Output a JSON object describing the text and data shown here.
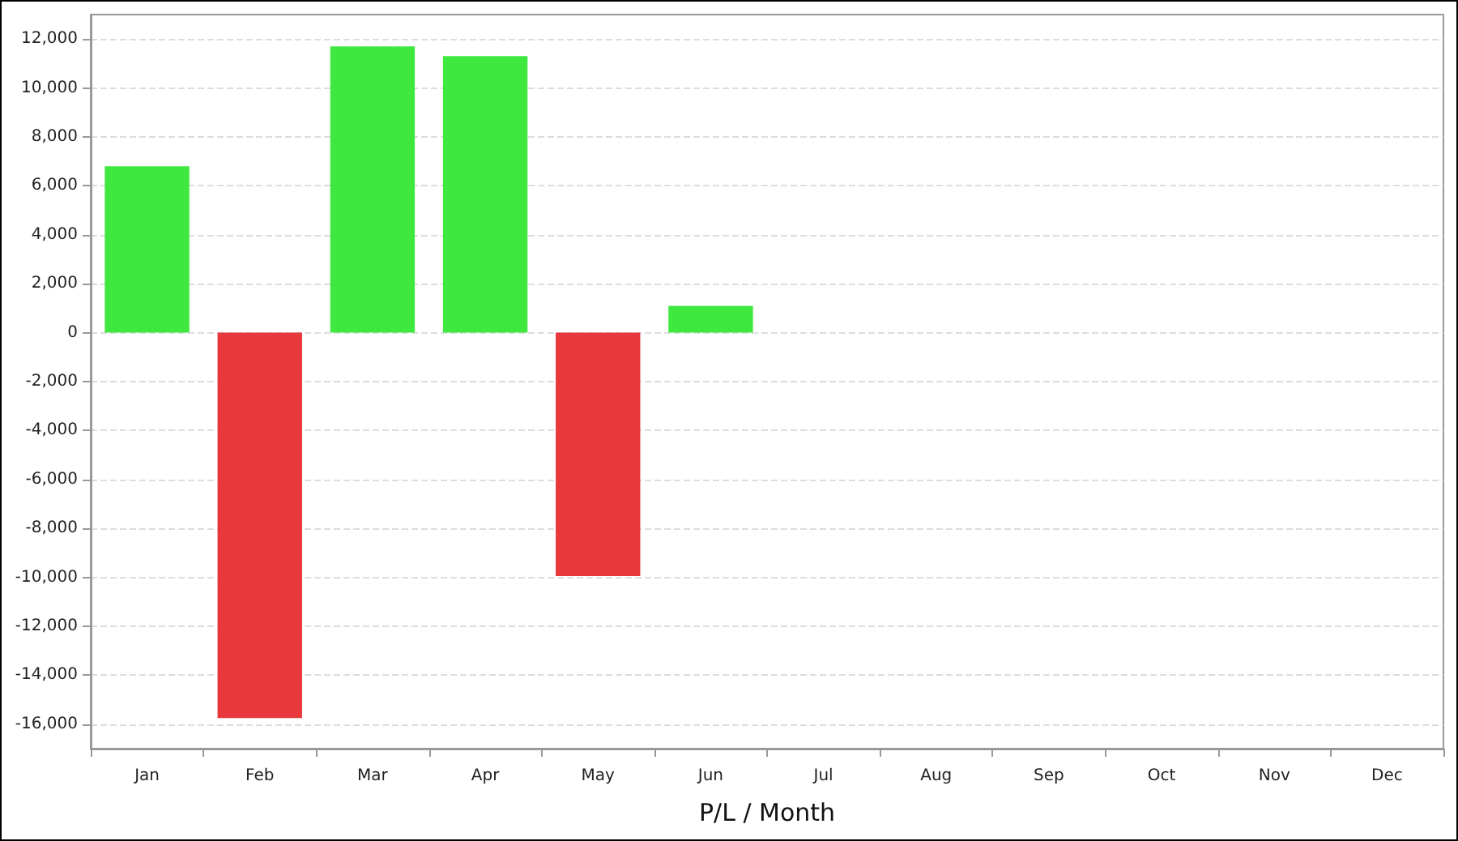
{
  "chart_data": {
    "type": "bar",
    "xlabel": "P/L / Month",
    "categories": [
      "Jan",
      "Feb",
      "Mar",
      "Apr",
      "May",
      "Jun",
      "Jul",
      "Aug",
      "Sep",
      "Oct",
      "Nov",
      "Dec"
    ],
    "values": [
      6800,
      -15750,
      11700,
      11300,
      -9950,
      1100,
      null,
      null,
      null,
      null,
      null,
      null
    ],
    "colors": [
      "#3ee83e",
      "#e8383b",
      "#3ee83e",
      "#3ee83e",
      "#e8383b",
      "#3ee83e",
      null,
      null,
      null,
      null,
      null,
      null
    ],
    "ylim": [
      -17000,
      13000
    ],
    "yticks": [
      {
        "value": -16000,
        "label": "-16,000"
      },
      {
        "value": -14000,
        "label": "-14,000"
      },
      {
        "value": -12000,
        "label": "-12,000"
      },
      {
        "value": -10000,
        "label": "-10,000"
      },
      {
        "value": -8000,
        "label": "-8,000"
      },
      {
        "value": -6000,
        "label": "-6,000"
      },
      {
        "value": -4000,
        "label": "-4,000"
      },
      {
        "value": -2000,
        "label": "-2,000"
      },
      0,
      {
        "value": 2000,
        "label": "2,000"
      },
      {
        "value": 4000,
        "label": "4,000"
      },
      {
        "value": 6000,
        "label": "6,000"
      },
      {
        "value": 8000,
        "label": "8,000"
      },
      {
        "value": 10000,
        "label": "10,000"
      },
      {
        "value": 12000,
        "label": "12,000"
      }
    ],
    "grid": "y"
  }
}
